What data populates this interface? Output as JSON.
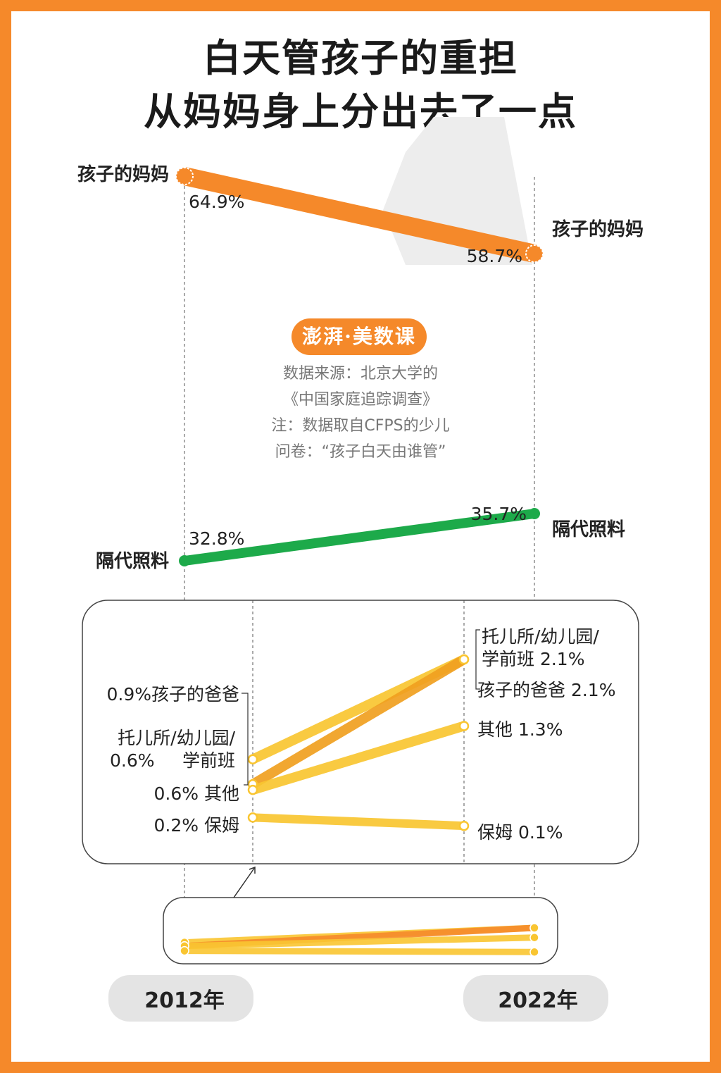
{
  "title": {
    "line1": "白天管孩子的重担",
    "line2": "从妈妈身上分出去了一点"
  },
  "logo_text": "澎湃·美数课",
  "source_lines": [
    "数据来源：北京大学的",
    "《中国家庭追踪调查》",
    "注：数据取自CFPS的少儿",
    "问卷：“孩子白天由谁管”"
  ],
  "colors": {
    "border": "#F5892A",
    "mother": "#F5892A",
    "grandparents": "#1DAA4A",
    "minor": "#F9C531",
    "minor_dark": "#F0A020"
  },
  "chart_data": {
    "type": "slope",
    "x": [
      "2012年",
      "2022年"
    ],
    "series": [
      {
        "name": "孩子的妈妈",
        "values": [
          64.9,
          58.7
        ],
        "labels": [
          "64.9%",
          "58.7%"
        ]
      },
      {
        "name": "隔代照料",
        "values": [
          32.8,
          35.7
        ],
        "labels": [
          "32.8%",
          "35.7%"
        ]
      },
      {
        "name": "孩子的爸爸",
        "values": [
          0.9,
          2.1
        ],
        "label_2012": "0.9%孩子的爸爸",
        "label_2022": "孩子的爸爸 2.1%"
      },
      {
        "name": "托儿所/幼儿园/学前班",
        "values": [
          0.6,
          2.1
        ],
        "label_2012_lines": [
          "托儿所/幼儿园/",
          "0.6%",
          "学前班"
        ],
        "label_2022_lines": [
          "托儿所/幼儿园/",
          "学前班 2.1%"
        ]
      },
      {
        "name": "其他",
        "values": [
          0.6,
          1.3
        ],
        "label_2012": "0.6% 其他",
        "label_2022": "其他 1.3%"
      },
      {
        "name": "保姆",
        "values": [
          0.2,
          0.1
        ],
        "label_2012": "0.2% 保姆",
        "label_2022": "保姆 0.1%"
      }
    ]
  }
}
